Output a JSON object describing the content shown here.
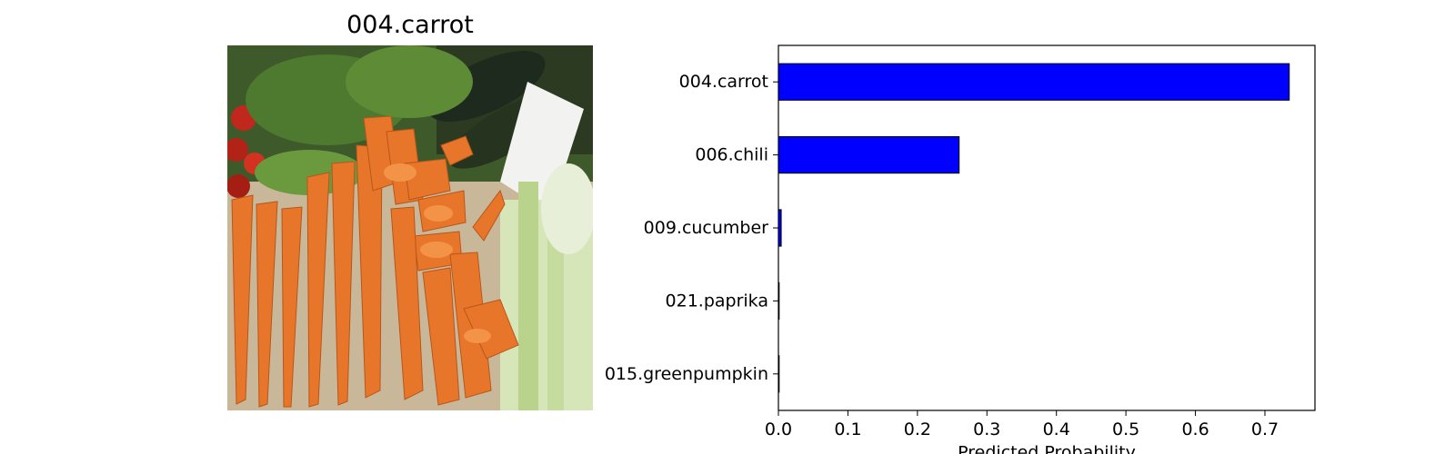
{
  "image_panel": {
    "title": "004.carrot"
  },
  "colors": {
    "bar_fill": "#0000ff",
    "bar_edge": "#000000"
  },
  "chart_data": {
    "type": "bar",
    "orientation": "horizontal",
    "categories": [
      "004.carrot",
      "006.chili",
      "009.cucumber",
      "021.paprika",
      "015.greenpumpkin"
    ],
    "values": [
      0.735,
      0.26,
      0.004,
      0.001,
      0.0005
    ],
    "xlabel": "Predicted Probability",
    "ylabel": "",
    "xlim": [
      0,
      0.772
    ],
    "xticks": [
      "0.0",
      "0.1",
      "0.2",
      "0.3",
      "0.4",
      "0.5",
      "0.6",
      "0.7"
    ],
    "grid": false
  }
}
